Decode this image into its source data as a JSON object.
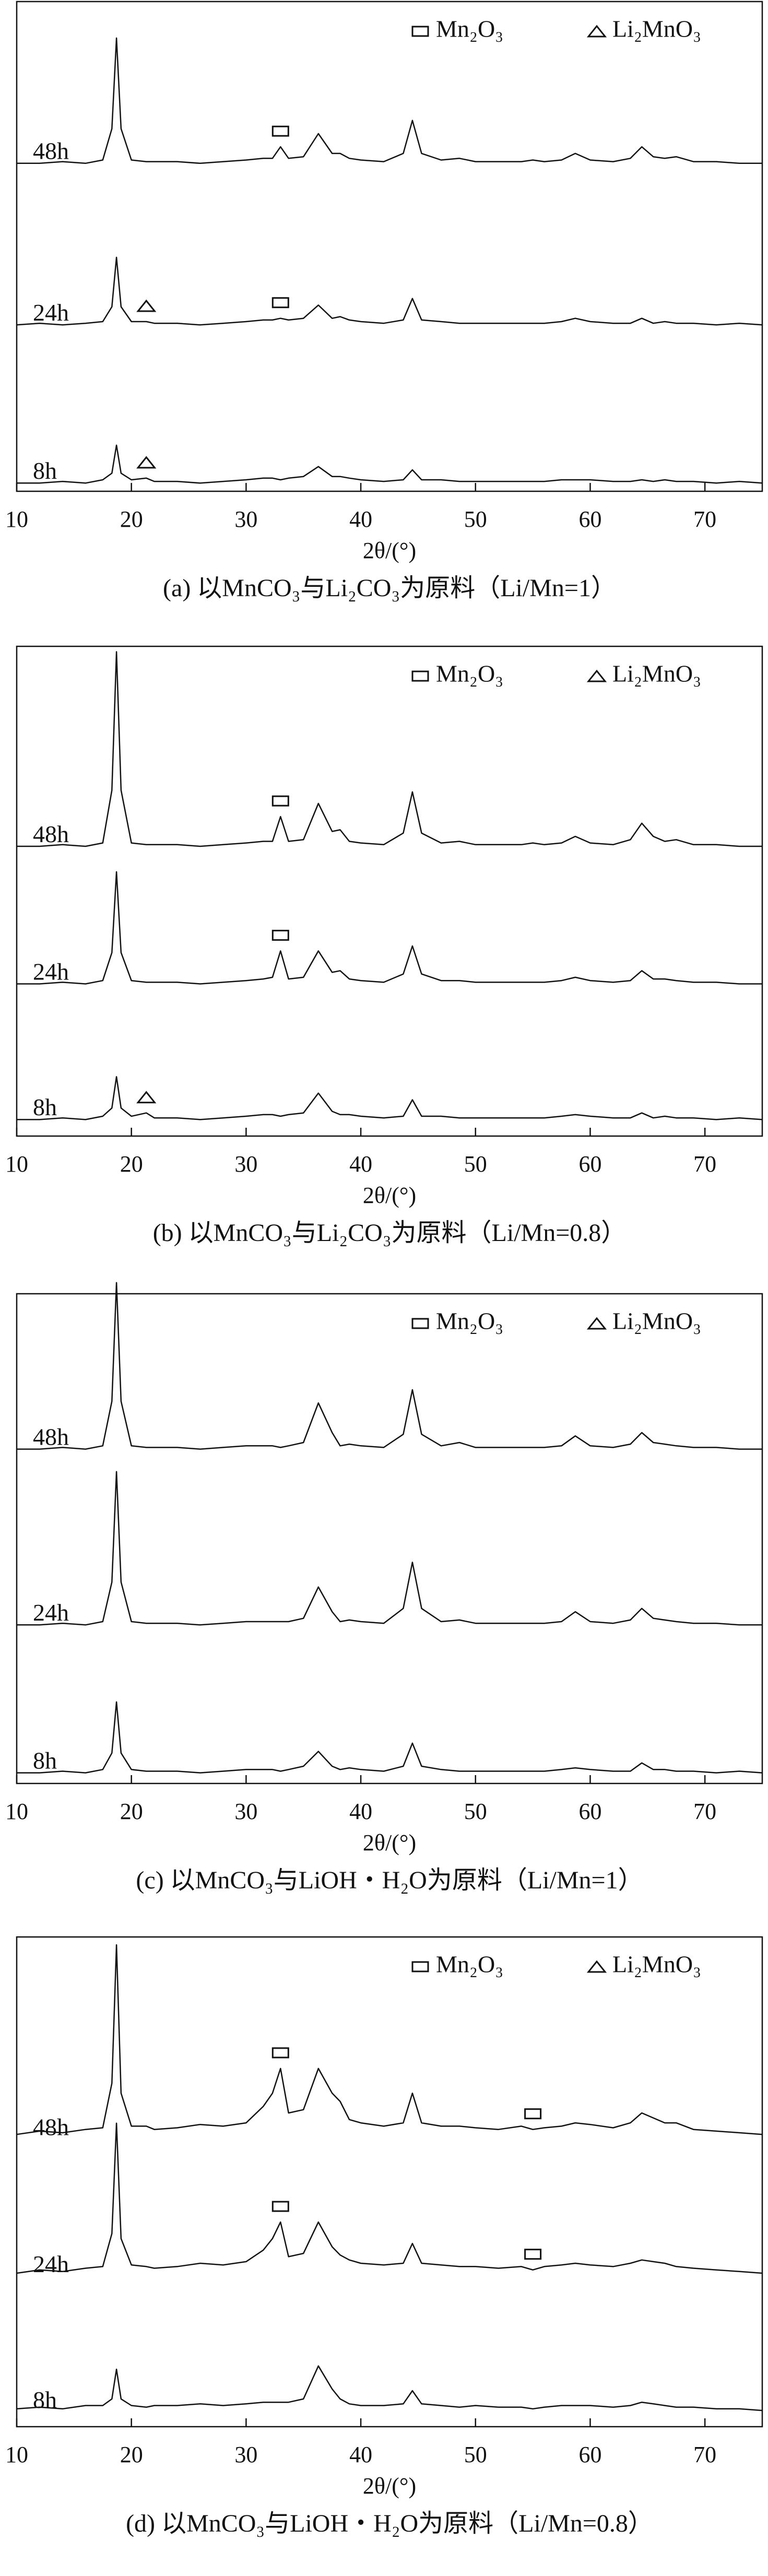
{
  "chart_data": [
    {
      "type": "line",
      "xlabel": "2θ/(°)",
      "caption": "(a) 以MnCO₃与Li₂CO₃为原料（Li/Mn=1）",
      "xlim": [
        10,
        75
      ],
      "xticks": [
        10,
        20,
        30,
        40,
        50,
        60,
        70
      ],
      "phases": [
        {
          "name": "Mn₂O₃",
          "symbol": "rect"
        },
        {
          "name": "Li₂MnO₃",
          "symbol": "triangle"
        }
      ],
      "x": [
        10,
        12,
        14,
        16,
        17.5,
        18.3,
        18.7,
        19.1,
        20,
        21.3,
        22,
        24,
        26,
        28,
        30,
        31.5,
        32.3,
        33,
        33.7,
        35,
        36.3,
        37.5,
        38.2,
        39,
        40,
        42,
        43.7,
        44.5,
        45.3,
        47,
        48.6,
        50,
        52,
        54,
        55,
        56,
        57.5,
        58.7,
        60,
        62,
        63.5,
        64.5,
        65.5,
        66.5,
        67.5,
        69,
        71,
        73,
        75
      ],
      "series": [
        {
          "name": "48h",
          "color": "#111111",
          "phase_peaks": [
            [
              33
            ],
            []
          ],
          "values": [
            2,
            2,
            3,
            2,
            4,
            23,
            78,
            23,
            4,
            3,
            3,
            3,
            2,
            3,
            4,
            5,
            5,
            12,
            5,
            6,
            20,
            8,
            8,
            5,
            4,
            3,
            8,
            28,
            8,
            4,
            5,
            3,
            3,
            3,
            4,
            3,
            4,
            8,
            4,
            3,
            5,
            12,
            6,
            5,
            6,
            3,
            3,
            2,
            2
          ]
        },
        {
          "name": "24h",
          "color": "#111111",
          "phase_peaks": [
            [
              33
            ],
            [
              21.3
            ]
          ],
          "values": [
            2,
            3,
            2,
            3,
            4,
            13,
            43,
            13,
            4,
            4,
            3,
            3,
            2,
            3,
            4,
            5,
            5,
            6,
            5,
            6,
            14,
            6,
            7,
            5,
            4,
            3,
            5,
            18,
            5,
            4,
            3,
            3,
            3,
            3,
            3,
            3,
            4,
            6,
            4,
            3,
            3,
            6,
            3,
            4,
            3,
            3,
            2,
            3,
            2
          ]
        },
        {
          "name": "8h",
          "color": "#111111",
          "phase_peaks": [
            [],
            [
              21.3
            ]
          ],
          "values": [
            2,
            2,
            3,
            2,
            4,
            8,
            25,
            8,
            4,
            5,
            3,
            3,
            2,
            3,
            4,
            5,
            5,
            4,
            5,
            6,
            12,
            6,
            6,
            5,
            4,
            3,
            4,
            10,
            4,
            4,
            3,
            3,
            3,
            3,
            3,
            3,
            4,
            4,
            4,
            3,
            3,
            4,
            3,
            4,
            3,
            3,
            2,
            3,
            2
          ]
        }
      ]
    },
    {
      "type": "line",
      "xlabel": "2θ/(°)",
      "caption": "(b) 以MnCO₃与Li₂CO₃为原料（Li/Mn=0.8）",
      "xlim": [
        10,
        75
      ],
      "xticks": [
        10,
        20,
        30,
        40,
        50,
        60,
        70
      ],
      "phases": [
        {
          "name": "Mn₂O₃",
          "symbol": "rect"
        },
        {
          "name": "Li₂MnO₃",
          "symbol": "triangle"
        }
      ],
      "x": [
        10,
        12,
        14,
        16,
        17.5,
        18.3,
        18.7,
        19.1,
        20,
        21.3,
        22,
        24,
        26,
        28,
        30,
        31.5,
        32.3,
        33,
        33.7,
        35,
        36.3,
        37.5,
        38.2,
        39,
        40,
        42,
        43.7,
        44.5,
        45.3,
        47,
        48.6,
        50,
        52,
        54,
        55,
        56,
        57.5,
        58.7,
        60,
        62,
        63.5,
        64.5,
        65.5,
        66.5,
        67.5,
        69,
        71,
        73,
        75
      ],
      "series": [
        {
          "name": "48h",
          "color": "#111111",
          "phase_peaks": [
            [
              33
            ],
            []
          ],
          "values": [
            2,
            2,
            3,
            2,
            4,
            36,
            120,
            36,
            4,
            3,
            3,
            3,
            2,
            3,
            4,
            5,
            5,
            20,
            5,
            6,
            28,
            11,
            12,
            5,
            4,
            3,
            10,
            35,
            10,
            4,
            5,
            3,
            3,
            3,
            4,
            3,
            4,
            8,
            4,
            3,
            6,
            16,
            8,
            5,
            6,
            3,
            3,
            2,
            2
          ]
        },
        {
          "name": "24h",
          "color": "#111111",
          "phase_peaks": [
            [
              33
            ],
            []
          ],
          "values": [
            2,
            2,
            3,
            2,
            4,
            21,
            70,
            21,
            4,
            3,
            3,
            3,
            2,
            3,
            4,
            5,
            6,
            22,
            5,
            6,
            22,
            9,
            10,
            5,
            4,
            3,
            8,
            25,
            8,
            4,
            4,
            3,
            3,
            3,
            3,
            3,
            4,
            6,
            4,
            3,
            4,
            10,
            5,
            5,
            4,
            3,
            3,
            2,
            2
          ]
        },
        {
          "name": "8h",
          "color": "#111111",
          "phase_peaks": [
            [],
            [
              21.3
            ]
          ],
          "values": [
            2,
            2,
            3,
            2,
            4,
            9,
            28,
            9,
            4,
            6,
            3,
            3,
            2,
            3,
            4,
            5,
            5,
            4,
            5,
            6,
            18,
            7,
            5,
            5,
            4,
            3,
            4,
            14,
            4,
            4,
            3,
            3,
            3,
            3,
            3,
            3,
            4,
            5,
            4,
            3,
            3,
            6,
            3,
            4,
            3,
            3,
            2,
            3,
            2
          ]
        }
      ]
    },
    {
      "type": "line",
      "xlabel": "2θ/(°)",
      "caption": "(c) 以MnCO₃与LiOH・H₂O为原料（Li/Mn=1）",
      "xlim": [
        10,
        75
      ],
      "xticks": [
        10,
        20,
        30,
        40,
        50,
        60,
        70
      ],
      "phases": [
        {
          "name": "Mn₂O₃",
          "symbol": "rect"
        },
        {
          "name": "Li₂MnO₃",
          "symbol": "triangle"
        }
      ],
      "x": [
        10,
        12,
        14,
        16,
        17.5,
        18.3,
        18.7,
        19.1,
        20,
        21.3,
        22,
        24,
        26,
        28,
        30,
        31.5,
        32.3,
        33,
        33.7,
        35,
        36.3,
        37.5,
        38.2,
        39,
        40,
        42,
        43.7,
        44.5,
        45.3,
        47,
        48.6,
        50,
        52,
        54,
        55,
        56,
        57.5,
        58.7,
        60,
        62,
        63.5,
        64.5,
        65.5,
        66.5,
        67.5,
        69,
        71,
        73,
        75
      ],
      "series": [
        {
          "name": "48h",
          "color": "#111111",
          "phase_peaks": [
            [],
            []
          ],
          "values": [
            2,
            2,
            3,
            2,
            4,
            31,
            103,
            31,
            4,
            3,
            3,
            3,
            2,
            3,
            4,
            4,
            4,
            3,
            4,
            6,
            30,
            12,
            4,
            5,
            4,
            3,
            11,
            38,
            11,
            4,
            6,
            3,
            3,
            3,
            3,
            3,
            4,
            10,
            4,
            3,
            5,
            12,
            6,
            5,
            4,
            3,
            3,
            2,
            2
          ]
        },
        {
          "name": "24h",
          "color": "#111111",
          "phase_peaks": [
            [],
            []
          ],
          "values": [
            2,
            2,
            3,
            2,
            4,
            28,
            95,
            28,
            4,
            3,
            3,
            3,
            2,
            3,
            4,
            4,
            4,
            4,
            4,
            6,
            25,
            10,
            4,
            5,
            4,
            3,
            12,
            40,
            12,
            4,
            5,
            3,
            3,
            3,
            3,
            3,
            4,
            10,
            4,
            3,
            5,
            12,
            6,
            5,
            4,
            3,
            3,
            2,
            2
          ]
        },
        {
          "name": "8h",
          "color": "#111111",
          "phase_peaks": [
            [],
            []
          ],
          "values": [
            2,
            2,
            3,
            2,
            4,
            14,
            45,
            14,
            4,
            3,
            3,
            3,
            2,
            3,
            4,
            4,
            4,
            3,
            4,
            6,
            15,
            6,
            4,
            5,
            4,
            3,
            6,
            20,
            6,
            4,
            3,
            3,
            3,
            3,
            3,
            3,
            4,
            5,
            4,
            3,
            3,
            8,
            4,
            4,
            3,
            3,
            2,
            3,
            2
          ]
        }
      ]
    },
    {
      "type": "line",
      "xlabel": "2θ/(°)",
      "caption": "(d) 以MnCO₃与LiOH・H₂O为原料（Li/Mn=0.8）",
      "xlim": [
        10,
        75
      ],
      "xticks": [
        10,
        20,
        30,
        40,
        50,
        60,
        70
      ],
      "phases": [
        {
          "name": "Mn₂O₃",
          "symbol": "rect"
        },
        {
          "name": "Li₂MnO₃",
          "symbol": "triangle"
        }
      ],
      "x": [
        10,
        12,
        14,
        16,
        17.5,
        18.3,
        18.7,
        19.1,
        20,
        21.3,
        22,
        24,
        26,
        28,
        30,
        31.5,
        32.3,
        33,
        33.7,
        35,
        36.3,
        37.5,
        38.2,
        39,
        40,
        42,
        43.7,
        44.5,
        45.3,
        47,
        48.6,
        50,
        52,
        54,
        55,
        56,
        57.5,
        58.7,
        60,
        62,
        63.5,
        64.5,
        65.5,
        66.5,
        67.5,
        69,
        71,
        73,
        75
      ],
      "series": [
        {
          "name": "48h",
          "color": "#111111",
          "phase_peaks": [
            [
              33,
              55
            ],
            []
          ],
          "values": [
            5,
            7,
            6,
            8,
            9,
            36,
            120,
            30,
            10,
            10,
            8,
            9,
            11,
            10,
            12,
            22,
            30,
            45,
            18,
            20,
            45,
            30,
            25,
            14,
            12,
            10,
            12,
            30,
            12,
            10,
            10,
            9,
            8,
            10,
            8,
            9,
            10,
            12,
            11,
            9,
            12,
            18,
            15,
            12,
            12,
            8,
            7,
            6,
            5
          ]
        },
        {
          "name": "24h",
          "color": "#111111",
          "phase_peaks": [
            [
              33,
              55
            ],
            []
          ],
          "values": [
            4,
            6,
            5,
            7,
            8,
            28,
            95,
            25,
            9,
            8,
            7,
            8,
            10,
            9,
            11,
            18,
            25,
            35,
            14,
            16,
            35,
            20,
            15,
            12,
            10,
            9,
            10,
            22,
            10,
            9,
            8,
            8,
            7,
            8,
            6,
            8,
            9,
            10,
            9,
            8,
            10,
            12,
            11,
            10,
            8,
            7,
            6,
            5,
            4
          ]
        },
        {
          "name": "8h",
          "color": "#111111",
          "phase_peaks": [
            [],
            []
          ],
          "values": [
            4,
            5,
            4,
            6,
            6,
            10,
            28,
            10,
            6,
            5,
            6,
            6,
            7,
            6,
            7,
            8,
            8,
            8,
            8,
            10,
            30,
            16,
            10,
            7,
            6,
            6,
            7,
            15,
            7,
            6,
            5,
            6,
            5,
            5,
            4,
            5,
            6,
            6,
            6,
            5,
            6,
            8,
            7,
            6,
            5,
            5,
            4,
            4,
            3
          ]
        }
      ]
    }
  ]
}
